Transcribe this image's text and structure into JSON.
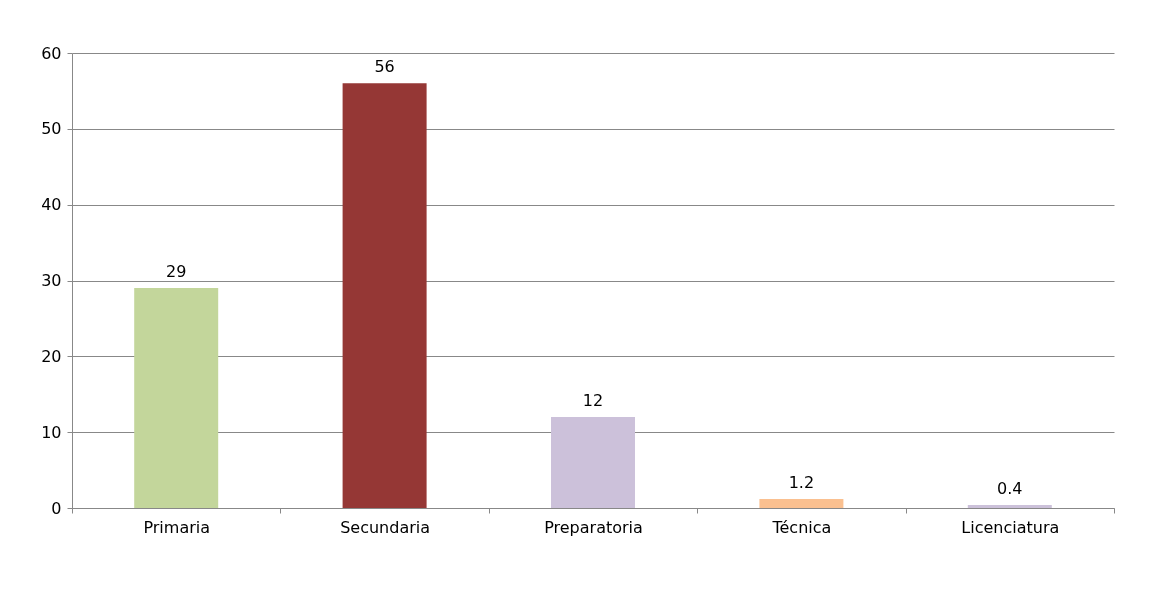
{
  "chart_data": {
    "type": "bar",
    "categories": [
      "Primaria",
      "Secundaria",
      "Preparatoria",
      "Técnica",
      "Licenciatura"
    ],
    "values": [
      29,
      56,
      12,
      1.2,
      0.4
    ],
    "colors": [
      "#c3d69b",
      "#953735",
      "#ccc1da",
      "#fac090",
      "#ccc1da"
    ],
    "ylim": [
      0,
      60
    ],
    "yticks": [
      0,
      10,
      20,
      30,
      40,
      50,
      60
    ],
    "grid": "y",
    "data_labels": true
  }
}
